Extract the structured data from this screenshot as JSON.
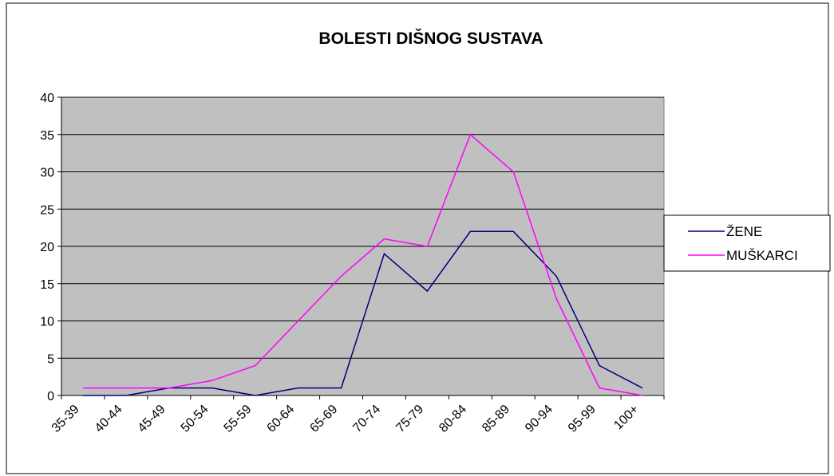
{
  "chart_data": {
    "type": "line",
    "title": "BOLESTI DIŠNOG SUSTAVA",
    "categories": [
      "35-39",
      "40-44",
      "45-49",
      "50-54",
      "55-59",
      "60-64",
      "65-69",
      "70-74",
      "75-79",
      "80-84",
      "85-89",
      "90-94",
      "95-99",
      "100+"
    ],
    "series": [
      {
        "name": "ŽENE",
        "color": "#000080",
        "values": [
          0,
          0,
          1,
          1,
          0,
          1,
          1,
          19,
          14,
          22,
          22,
          16,
          4,
          1
        ]
      },
      {
        "name": "MUŠKARCI",
        "color": "#ff00ff",
        "values": [
          1,
          1,
          1,
          2,
          4,
          10,
          16,
          21,
          20,
          35,
          30,
          13,
          1,
          0
        ]
      }
    ],
    "ylim": [
      0,
      40
    ],
    "yticks": [
      0,
      5,
      10,
      15,
      20,
      25,
      30,
      35,
      40
    ],
    "grid": true,
    "legend": "right"
  }
}
